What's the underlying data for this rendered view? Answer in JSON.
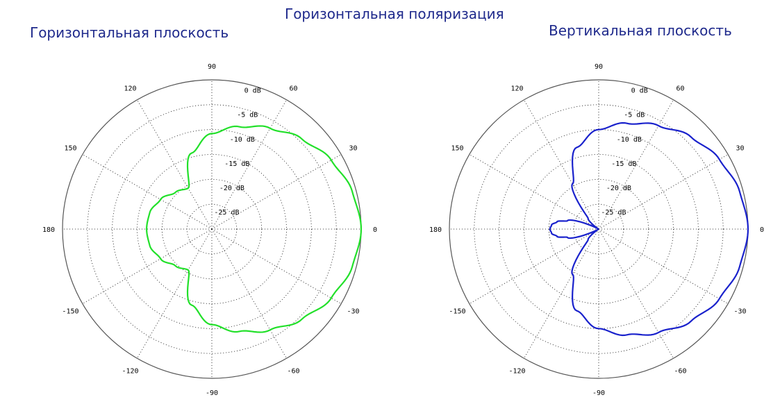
{
  "header": {
    "title": "Горизонтальная поляризация"
  },
  "chart_data": [
    {
      "type": "line",
      "coordinate_system": "polar",
      "title": "Горизонтальная плоскость",
      "angle_ticks": [
        "0",
        "30",
        "60",
        "90",
        "120",
        "150",
        "180",
        "-150",
        "-120",
        "-90",
        "-60",
        "-30"
      ],
      "radial_ticks": [
        "0 dB",
        "-5 dB",
        "-10 dB",
        "-15 dB",
        "-20 dB",
        "-25 dB"
      ],
      "radial_range_db": [
        -30,
        0
      ],
      "grid": true,
      "series": [
        {
          "color": "#22e02a",
          "angle_deg": [
            0,
            15,
            30,
            45,
            60,
            75,
            90,
            105,
            120,
            135,
            150,
            165,
            180,
            195,
            210,
            225,
            240,
            255,
            270,
            285,
            300,
            315,
            330,
            345
          ],
          "gain_db": [
            0,
            -0.8,
            -2.3,
            -4.4,
            -6.6,
            -8.7,
            -10.8,
            -14.2,
            -20.5,
            -19.6,
            -18.1,
            -17.1,
            -16.9,
            -17.1,
            -18.1,
            -19.6,
            -20.5,
            -14.2,
            -10.8,
            -8.7,
            -6.6,
            -4.4,
            -2.3,
            -0.8
          ]
        }
      ]
    },
    {
      "type": "line",
      "coordinate_system": "polar",
      "title": "Вертикальная плоскость",
      "angle_ticks": [
        "0",
        "30",
        "60",
        "90",
        "120",
        "150",
        "180",
        "-150",
        "-120",
        "-90",
        "-60",
        "-30"
      ],
      "radial_ticks": [
        "0 dB",
        "-5 dB",
        "-10 dB",
        "-15 dB",
        "-20 dB",
        "-25 dB"
      ],
      "radial_range_db": [
        -30,
        0
      ],
      "grid": true,
      "series": [
        {
          "color": "#1a22cc",
          "angle_deg": [
            0,
            15,
            30,
            45,
            60,
            75,
            90,
            105,
            120,
            135,
            150,
            165,
            170,
            175,
            180,
            185,
            190,
            195,
            210,
            225,
            240,
            255,
            270,
            285,
            300,
            315,
            330,
            345
          ],
          "gain_db": [
            0,
            -0.7,
            -2.0,
            -3.8,
            -6.0,
            -8.0,
            -10.0,
            -13.0,
            -19.5,
            -27.0,
            -30,
            -23.5,
            -21.5,
            -20.5,
            -20.2,
            -20.5,
            -21.5,
            -23.5,
            -30,
            -27.0,
            -19.5,
            -13.0,
            -10.0,
            -8.0,
            -6.0,
            -3.8,
            -2.0,
            -0.7
          ]
        }
      ]
    }
  ]
}
